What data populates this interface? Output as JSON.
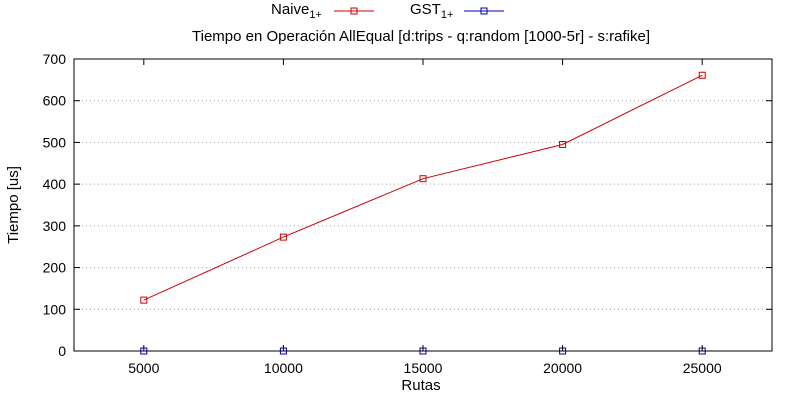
{
  "chart_data": {
    "type": "line",
    "title": "Tiempo en Operación AllEqual [d:trips - q:random [1000-5r] - s:rafike]",
    "xlabel": "Rutas",
    "ylabel": "Tiempo [us]",
    "x": [
      5000,
      10000,
      15000,
      20000,
      25000
    ],
    "xlim": [
      2500,
      27500
    ],
    "ylim": [
      0,
      700
    ],
    "xticks": [
      "5000",
      "10000",
      "15000",
      "20000",
      "25000"
    ],
    "yticks": [
      "0",
      "100",
      "200",
      "300",
      "400",
      "500",
      "600",
      "700"
    ],
    "grid": "horizontal",
    "legend_position": "top-center",
    "series": [
      {
        "name": "Naive",
        "name_sub": "1+",
        "values": [
          122,
          273,
          413,
          495,
          661
        ],
        "color": "#cc0000",
        "marker": "square"
      },
      {
        "name": "GST",
        "name_sub": "1+",
        "values": [
          0,
          0,
          0,
          0,
          0
        ],
        "color": "#0000b0",
        "marker": "square"
      }
    ]
  }
}
